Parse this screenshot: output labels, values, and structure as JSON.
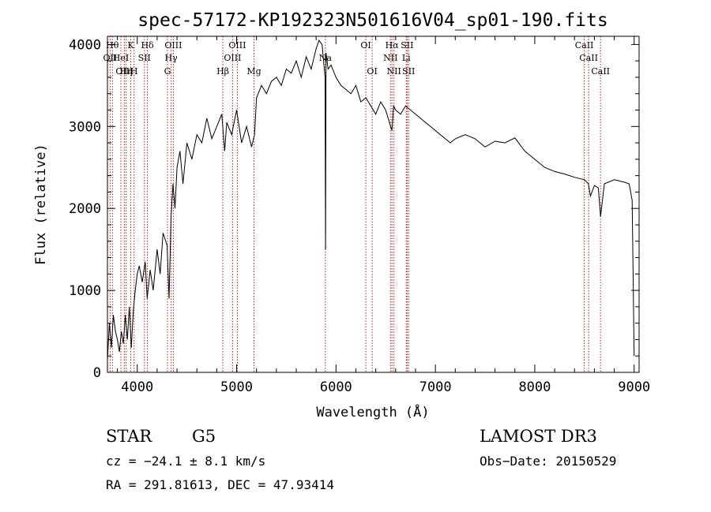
{
  "chart_data": {
    "type": "line",
    "title": "spec-57172-KP192323N501616V04_sp01-190.fits",
    "xlabel": "Wavelength (Å)",
    "ylabel": "Flux (relative)",
    "xlim": [
      3700,
      9050
    ],
    "ylim": [
      0,
      4100
    ],
    "xticks": [
      4000,
      5000,
      6000,
      7000,
      8000,
      9000
    ],
    "yticks": [
      0,
      1000,
      2000,
      3000,
      4000
    ],
    "series": [
      {
        "x": [
          3700,
          3720,
          3740,
          3760,
          3780,
          3800,
          3820,
          3840,
          3860,
          3880,
          3900,
          3920,
          3940,
          3960,
          3980,
          4000,
          4020,
          4050,
          4080,
          4100,
          4130,
          4160,
          4200,
          4230,
          4260,
          4300,
          4320,
          4340,
          4360,
          4380,
          4400,
          4430,
          4460,
          4500,
          4550,
          4600,
          4650,
          4700,
          4750,
          4800,
          4850,
          4880,
          4900,
          4950,
          5000,
          5050,
          5100,
          5150,
          5180,
          5200,
          5250,
          5300,
          5350,
          5400,
          5450,
          5500,
          5550,
          5600,
          5650,
          5700,
          5750,
          5800,
          5830,
          5860,
          5890,
          5895,
          5900,
          5920,
          5950,
          6000,
          6050,
          6100,
          6150,
          6200,
          6250,
          6300,
          6350,
          6400,
          6450,
          6500,
          6550,
          6563,
          6580,
          6600,
          6650,
          6700,
          6750,
          6800,
          6850,
          6900,
          6950,
          7000,
          7050,
          7100,
          7150,
          7200,
          7300,
          7400,
          7500,
          7600,
          7700,
          7800,
          7850,
          7900,
          8000,
          8100,
          8200,
          8300,
          8400,
          8500,
          8540,
          8560,
          8600,
          8640,
          8662,
          8700,
          8800,
          8900,
          8950,
          8980,
          9000
        ],
        "y": [
          150,
          600,
          300,
          700,
          500,
          400,
          250,
          500,
          350,
          700,
          400,
          800,
          300,
          750,
          1000,
          1200,
          1300,
          1100,
          1350,
          900,
          1250,
          1000,
          1500,
          1200,
          1700,
          1550,
          900,
          1900,
          2300,
          2000,
          2500,
          2700,
          2300,
          2800,
          2600,
          2900,
          2800,
          3100,
          2850,
          3000,
          3150,
          2700,
          3050,
          2900,
          3200,
          2800,
          3000,
          2750,
          2900,
          3350,
          3500,
          3400,
          3550,
          3600,
          3500,
          3700,
          3650,
          3800,
          3600,
          3850,
          3700,
          3950,
          4050,
          4000,
          3600,
          1500,
          3900,
          3700,
          3750,
          3600,
          3500,
          3450,
          3400,
          3500,
          3300,
          3350,
          3250,
          3150,
          3300,
          3200,
          3000,
          2950,
          3250,
          3200,
          3150,
          3250,
          3200,
          3150,
          3100,
          3050,
          3000,
          2950,
          2900,
          2850,
          2800,
          2850,
          2900,
          2850,
          2750,
          2820,
          2800,
          2860,
          2780,
          2700,
          2600,
          2500,
          2450,
          2420,
          2380,
          2350,
          2300,
          2150,
          2280,
          2250,
          1900,
          2300,
          2350,
          2320,
          2300,
          2100,
          200
        ]
      }
    ],
    "line_markers": [
      {
        "wave": 3727,
        "row": 1,
        "label": "OII"
      },
      {
        "wave": 3750,
        "row": 0,
        "label": "Hθ"
      },
      {
        "wave": 3835,
        "row": 1,
        "label": "HeI"
      },
      {
        "wave": 3870,
        "row": 2,
        "label": "OIII"
      },
      {
        "wave": 3889,
        "row": 2,
        "label": "Hη"
      },
      {
        "wave": 3934,
        "row": 0,
        "label": "K"
      },
      {
        "wave": 3968,
        "row": 2,
        "label": "H"
      },
      {
        "wave": 4072,
        "row": 1,
        "label": "SII"
      },
      {
        "wave": 4102,
        "row": 0,
        "label": "Hδ"
      },
      {
        "wave": 4304,
        "row": 2,
        "label": "G"
      },
      {
        "wave": 4341,
        "row": 1,
        "label": "Hγ"
      },
      {
        "wave": 4363,
        "row": 0,
        "label": "OIII"
      },
      {
        "wave": 4861,
        "row": 2,
        "label": "Hβ"
      },
      {
        "wave": 4959,
        "row": 1,
        "label": "OIII"
      },
      {
        "wave": 5007,
        "row": 0,
        "label": "OIII"
      },
      {
        "wave": 5175,
        "row": 2,
        "label": "Mg"
      },
      {
        "wave": 5893,
        "row": 1,
        "label": "Na"
      },
      {
        "wave": 6300,
        "row": 0,
        "label": "OI"
      },
      {
        "wave": 6364,
        "row": 2,
        "label": "OI"
      },
      {
        "wave": 6548,
        "row": 1,
        "label": "NII"
      },
      {
        "wave": 6563,
        "row": 0,
        "label": "Hα"
      },
      {
        "wave": 6583,
        "row": 2,
        "label": "NII"
      },
      {
        "wave": 6707,
        "row": 1,
        "label": "Li"
      },
      {
        "wave": 6716,
        "row": 0,
        "label": "SII"
      },
      {
        "wave": 6731,
        "row": 2,
        "label": "SII"
      },
      {
        "wave": 8498,
        "row": 0,
        "label": "CaII"
      },
      {
        "wave": 8542,
        "row": 1,
        "label": "CaII"
      },
      {
        "wave": 8662,
        "row": 2,
        "label": "CaII"
      }
    ]
  },
  "info": {
    "class_label": "STAR",
    "subclass_label": "G5",
    "survey_label": "LAMOST DR3",
    "cz_text": "cz = −24.1 ± 8.1 km/s",
    "obs_date_text": "Obs−Date: 20150529",
    "coords_text": "RA = 291.81613, DEC =  47.93414"
  },
  "colors": {
    "spectrum": "#000000",
    "line_marker": "#b22222",
    "axis": "#000000",
    "background": "#ffffff"
  }
}
